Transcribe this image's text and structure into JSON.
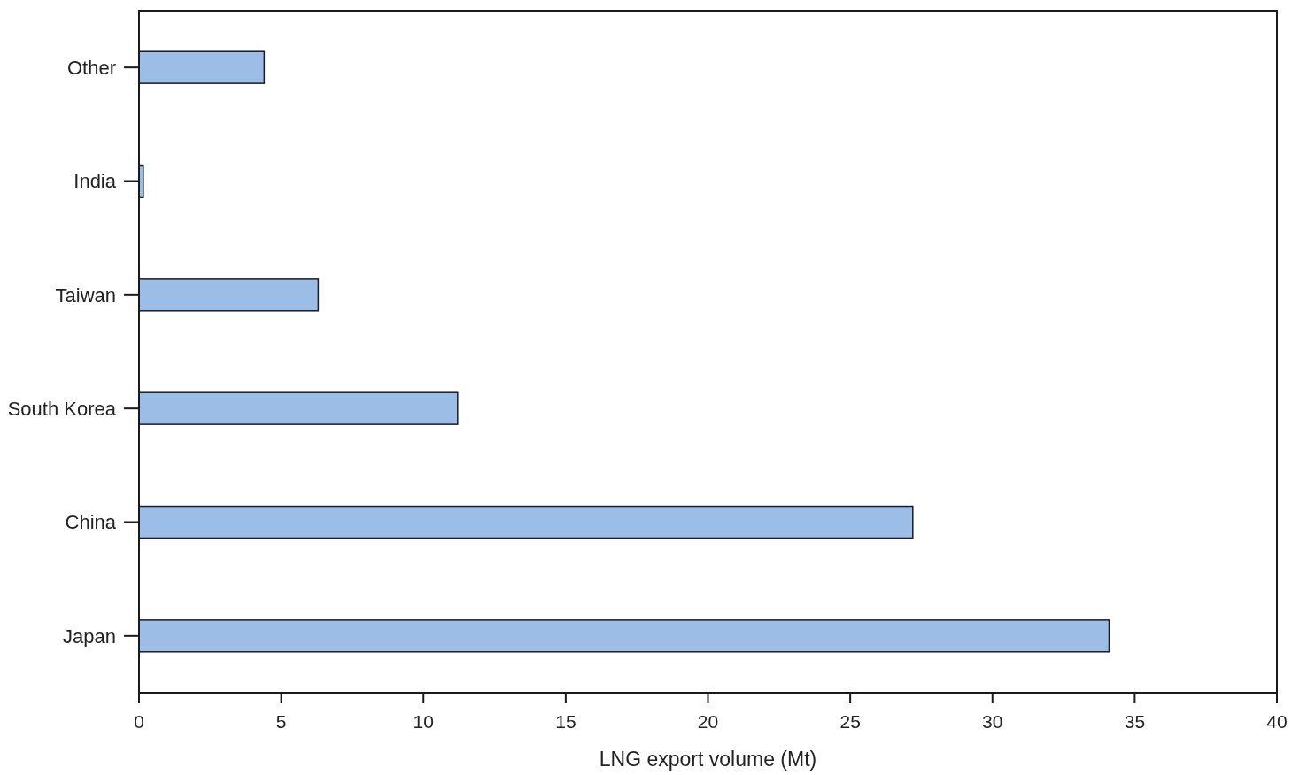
{
  "chart_data": {
    "type": "bar",
    "orientation": "horizontal",
    "xlabel": "LNG export volume (Mt)",
    "categories": [
      "Other",
      "India",
      "Taiwan",
      "South Korea",
      "China",
      "Japan"
    ],
    "values": [
      4.4,
      0.15,
      6.3,
      11.2,
      27.2,
      34.1
    ],
    "color": "#9bbde6",
    "xlim": [
      0,
      40
    ],
    "xticks": [
      0,
      5,
      10,
      15,
      20,
      25,
      30,
      35,
      40
    ],
    "grid": false
  }
}
